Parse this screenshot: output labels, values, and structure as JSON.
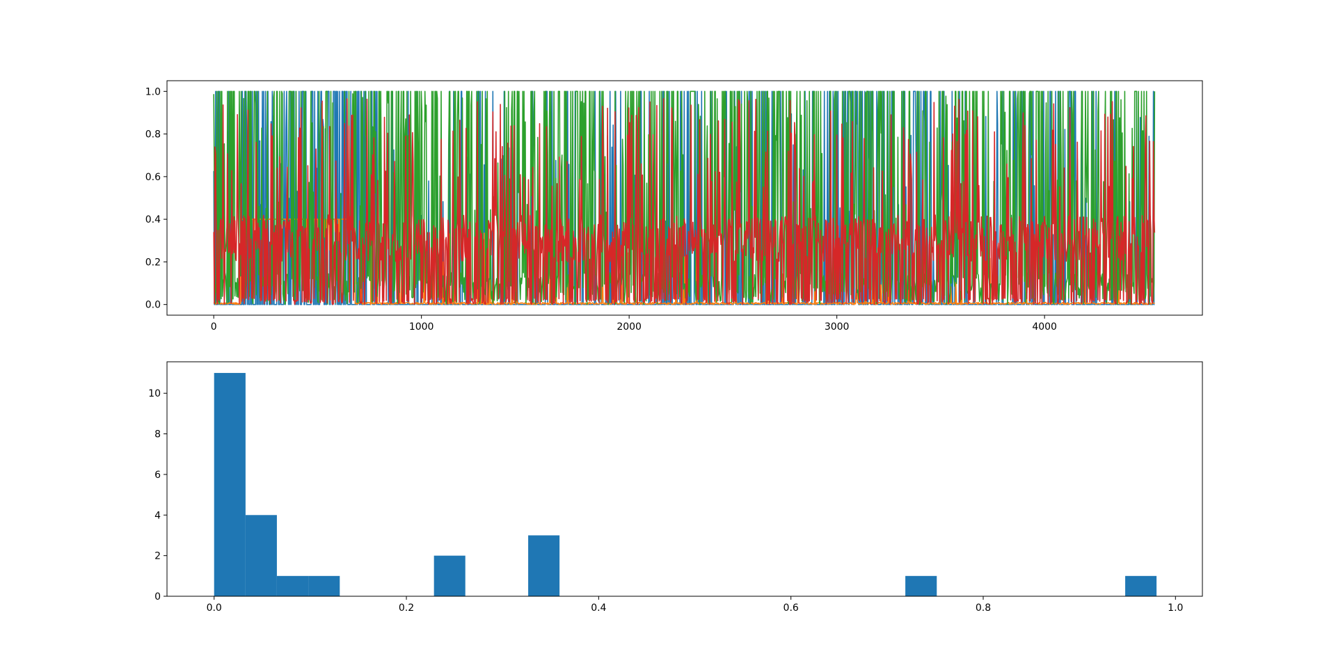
{
  "figure": {
    "background": "#ffffff"
  },
  "chart_data": [
    {
      "type": "line",
      "title": "",
      "xlabel": "",
      "ylabel": "",
      "xlim": [
        -225,
        4760
      ],
      "ylim": [
        -0.05,
        1.05
      ],
      "grid": false,
      "legend": null,
      "x_ticks": [
        0,
        1000,
        2000,
        3000,
        4000
      ],
      "x_tick_labels": [
        "0",
        "1000",
        "2000",
        "3000",
        "4000"
      ],
      "y_ticks": [
        0.0,
        0.2,
        0.4,
        0.6,
        0.8,
        1.0
      ],
      "y_tick_labels": [
        "0.0",
        "0.2",
        "0.4",
        "0.6",
        "0.8",
        "1.0"
      ],
      "x_range": [
        0,
        4530
      ],
      "n_points": 4531,
      "series": [
        {
          "color": "#1f77b4",
          "range": [
            0,
            1.0
          ],
          "typical": "square pulses 0–1.0, dense 130–700, 3000–3450"
        },
        {
          "color": "#ff7f0e",
          "range": [
            0,
            0.4
          ],
          "typical": "plateau ~0.4 over 130–680, small spikes elsewhere"
        },
        {
          "color": "#2ca02c",
          "range": [
            0,
            1.0
          ],
          "typical": "frequent spikes 0–1.0 across full range"
        },
        {
          "color": "#d62728",
          "range": [
            0,
            0.97
          ],
          "typical": "noisy 0–0.4 band with peaks to ~0.97"
        }
      ]
    },
    {
      "type": "bar",
      "subtype": "histogram",
      "title": "",
      "xlabel": "",
      "ylabel": "",
      "xlim": [
        -0.049,
        1.028
      ],
      "ylim": [
        0,
        11.55
      ],
      "grid": false,
      "legend": null,
      "x_ticks": [
        0.0,
        0.2,
        0.4,
        0.6,
        0.8,
        1.0
      ],
      "x_tick_labels": [
        "0.0",
        "0.2",
        "0.4",
        "0.6",
        "0.8",
        "1.0"
      ],
      "y_ticks": [
        0,
        2,
        4,
        6,
        8,
        10
      ],
      "y_tick_labels": [
        "0",
        "2",
        "4",
        "6",
        "8",
        "10"
      ],
      "color": "#1f77b4",
      "bins": [
        {
          "x0": 0.0,
          "x1": 0.0327,
          "count": 11
        },
        {
          "x0": 0.0327,
          "x1": 0.0653,
          "count": 4
        },
        {
          "x0": 0.0653,
          "x1": 0.098,
          "count": 1
        },
        {
          "x0": 0.098,
          "x1": 0.1307,
          "count": 1
        },
        {
          "x0": 0.2287,
          "x1": 0.2613,
          "count": 2
        },
        {
          "x0": 0.3267,
          "x1": 0.3593,
          "count": 3
        },
        {
          "x0": 0.719,
          "x1": 0.7517,
          "count": 1
        },
        {
          "x0": 0.9477,
          "x1": 0.9803,
          "count": 1
        }
      ]
    }
  ]
}
